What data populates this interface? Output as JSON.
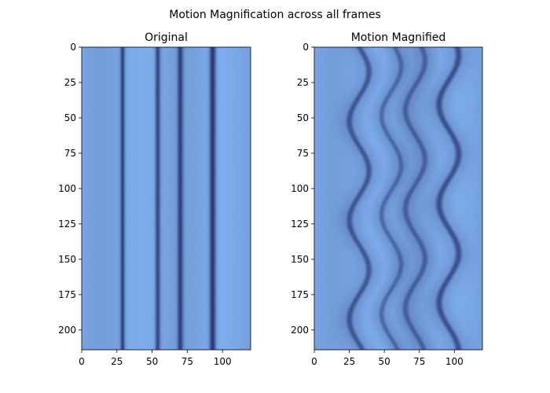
{
  "figure": {
    "suptitle": "Motion Magnification across all frames"
  },
  "colors": {
    "background": "#7aa7e6",
    "stripe": "#23306b",
    "tick": "#000000"
  },
  "chart_data": [
    {
      "type": "heatmap",
      "title": "Original",
      "x_range": [
        0,
        120
      ],
      "y_range": [
        214,
        0
      ],
      "x_ticks": [
        0,
        25,
        50,
        75,
        100
      ],
      "y_ticks": [
        0,
        25,
        50,
        75,
        100,
        125,
        150,
        175,
        200
      ],
      "stripes": [
        {
          "center": 29,
          "amplitude": 0,
          "width": 1.6,
          "strength": 0.85
        },
        {
          "center": 54,
          "amplitude": 0,
          "width": 1.8,
          "strength": 0.8
        },
        {
          "center": 70,
          "amplitude": 0,
          "width": 2.0,
          "strength": 0.85
        },
        {
          "center": 93,
          "amplitude": 0,
          "width": 2.2,
          "strength": 0.95
        }
      ],
      "wave_period_frames": 70,
      "grid": false
    },
    {
      "type": "heatmap",
      "title": "Motion Magnified",
      "x_range": [
        0,
        120
      ],
      "y_range": [
        214,
        0
      ],
      "x_ticks": [
        0,
        25,
        50,
        75,
        100
      ],
      "y_ticks": [
        0,
        25,
        50,
        75,
        100,
        125,
        150,
        175,
        200
      ],
      "stripes": [
        {
          "center": 32,
          "amplitude": 7,
          "width": 2.6,
          "strength": 0.7
        },
        {
          "center": 55,
          "amplitude": 7,
          "width": 2.4,
          "strength": 0.55
        },
        {
          "center": 72,
          "amplitude": 7,
          "width": 2.6,
          "strength": 0.6
        },
        {
          "center": 96,
          "amplitude": 7,
          "width": 2.8,
          "strength": 0.75
        }
      ],
      "wave_period_frames": 70,
      "grid": false
    }
  ]
}
